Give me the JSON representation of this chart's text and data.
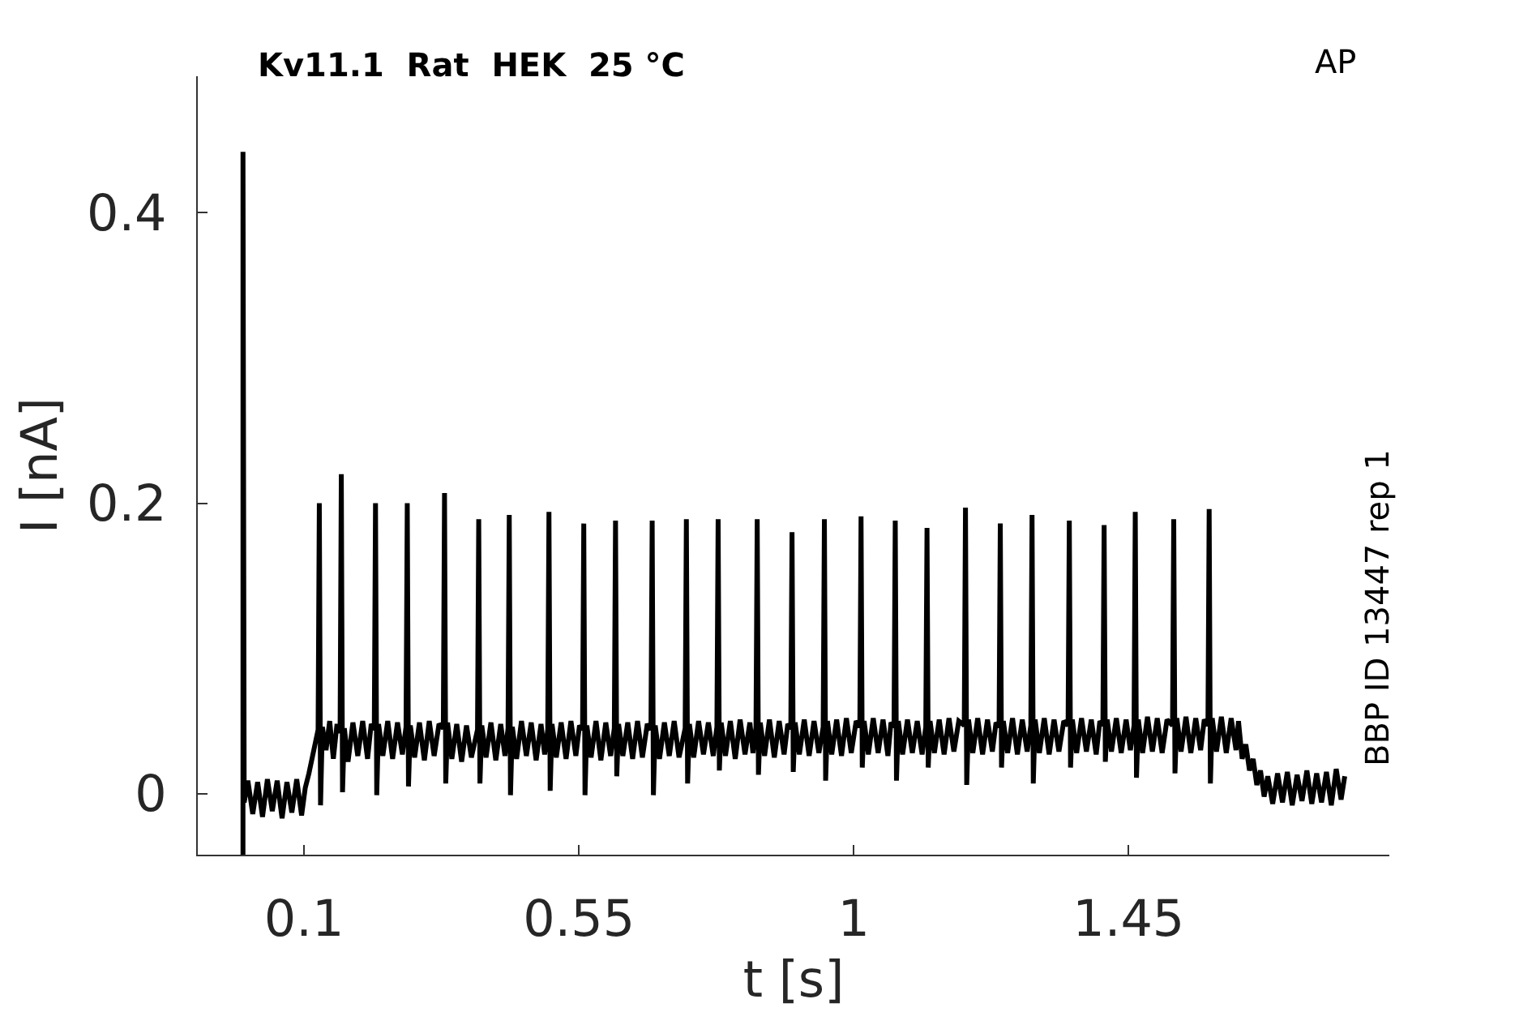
{
  "chart_data": {
    "type": "line",
    "title": "Kv11.1  Rat  HEK  25 °C",
    "xlabel": "t [s]",
    "ylabel": "I [nA]",
    "annotations": [
      "AP",
      "BBP ID 13447 rep 1"
    ],
    "x": [
      0,
      0,
      0.002,
      0.008,
      0.016,
      0.024,
      0.032,
      0.04,
      0.048,
      0.056,
      0.064,
      0.072,
      0.08,
      0.088,
      0.096,
      0.102,
      0.108,
      0.114,
      0.12,
      0.123,
      0.125,
      0.127,
      0.13,
      0.136,
      0.142,
      0.148,
      0.154,
      0.159,
      0.161,
      0.163,
      0.166,
      0.172,
      0.18,
      0.188,
      0.196,
      0.204,
      0.21,
      0.215,
      0.217,
      0.219,
      0.222,
      0.229,
      0.237,
      0.245,
      0.253,
      0.261,
      0.267,
      0.269,
      0.271,
      0.274,
      0.281,
      0.289,
      0.297,
      0.305,
      0.313,
      0.321,
      0.328,
      0.33,
      0.332,
      0.335,
      0.342,
      0.35,
      0.358,
      0.366,
      0.374,
      0.384,
      0.386,
      0.388,
      0.391,
      0.398,
      0.406,
      0.414,
      0.422,
      0.429,
      0.434,
      0.436,
      0.438,
      0.441,
      0.448,
      0.456,
      0.464,
      0.472,
      0.48,
      0.488,
      0.494,
      0.499,
      0.501,
      0.503,
      0.506,
      0.513,
      0.521,
      0.529,
      0.537,
      0.545,
      0.551,
      0.556,
      0.558,
      0.56,
      0.563,
      0.57,
      0.578,
      0.586,
      0.594,
      0.602,
      0.608,
      0.61,
      0.612,
      0.615,
      0.622,
      0.63,
      0.638,
      0.646,
      0.654,
      0.662,
      0.668,
      0.67,
      0.672,
      0.675,
      0.682,
      0.69,
      0.698,
      0.706,
      0.714,
      0.724,
      0.726,
      0.728,
      0.731,
      0.738,
      0.746,
      0.754,
      0.762,
      0.77,
      0.776,
      0.778,
      0.78,
      0.783,
      0.79,
      0.798,
      0.806,
      0.814,
      0.822,
      0.83,
      0.835,
      0.84,
      0.842,
      0.844,
      0.847,
      0.854,
      0.862,
      0.87,
      0.878,
      0.886,
      0.892,
      0.897,
      0.899,
      0.901,
      0.904,
      0.911,
      0.919,
      0.927,
      0.935,
      0.943,
      0.95,
      0.952,
      0.954,
      0.957,
      0.964,
      0.972,
      0.98,
      0.988,
      0.996,
      1.004,
      1.01,
      1.012,
      1.014,
      1.017,
      1.024,
      1.032,
      1.04,
      1.048,
      1.056,
      1.061,
      1.066,
      1.068,
      1.07,
      1.073,
      1.08,
      1.088,
      1.096,
      1.104,
      1.112,
      1.118,
      1.12,
      1.122,
      1.125,
      1.132,
      1.14,
      1.148,
      1.156,
      1.164,
      1.172,
      1.181,
      1.183,
      1.185,
      1.188,
      1.195,
      1.203,
      1.211,
      1.219,
      1.227,
      1.233,
      1.238,
      1.24,
      1.242,
      1.245,
      1.252,
      1.26,
      1.268,
      1.276,
      1.284,
      1.29,
      1.292,
      1.294,
      1.297,
      1.304,
      1.312,
      1.32,
      1.328,
      1.336,
      1.344,
      1.351,
      1.353,
      1.355,
      1.358,
      1.365,
      1.373,
      1.381,
      1.389,
      1.397,
      1.403,
      1.408,
      1.41,
      1.412,
      1.415,
      1.422,
      1.43,
      1.438,
      1.446,
      1.453,
      1.459,
      1.461,
      1.463,
      1.466,
      1.473,
      1.481,
      1.489,
      1.497,
      1.505,
      1.513,
      1.522,
      1.524,
      1.526,
      1.529,
      1.536,
      1.544,
      1.552,
      1.56,
      1.568,
      1.574,
      1.58,
      1.582,
      1.584,
      1.587,
      1.594,
      1.602,
      1.61,
      1.618,
      1.626,
      1.63,
      1.636,
      1.642,
      1.648,
      1.654,
      1.66,
      1.666,
      1.672,
      1.678,
      1.686,
      1.694,
      1.702,
      1.71,
      1.718,
      1.726,
      1.734,
      1.742,
      1.75,
      1.758,
      1.766,
      1.774,
      1.782,
      1.79,
      1.798,
      1.804
    ],
    "series": [
      {
        "color": "#000000",
        "values": [
          -0.042,
          0.442,
          -0.006,
          0.009,
          -0.014,
          0.008,
          -0.016,
          0.01,
          -0.012,
          0.009,
          -0.017,
          0.008,
          -0.013,
          0.01,
          -0.015,
          0.004,
          0.014,
          0.026,
          0.038,
          0.044,
          0.2,
          -0.008,
          0.046,
          0.03,
          0.05,
          0.024,
          0.048,
          0.042,
          0.22,
          0.001,
          0.045,
          0.022,
          0.049,
          0.026,
          0.05,
          0.024,
          0.048,
          0.044,
          0.2,
          -0.001,
          0.048,
          0.026,
          0.05,
          0.024,
          0.049,
          0.027,
          0.046,
          0.2,
          0.005,
          0.047,
          0.025,
          0.049,
          0.023,
          0.05,
          0.026,
          0.048,
          0.045,
          0.207,
          0.007,
          0.049,
          0.024,
          0.048,
          0.022,
          0.047,
          0.025,
          0.044,
          0.189,
          0.007,
          0.047,
          0.025,
          0.049,
          0.023,
          0.048,
          0.026,
          0.045,
          0.192,
          -0.001,
          0.046,
          0.024,
          0.05,
          0.026,
          0.049,
          0.023,
          0.048,
          0.027,
          0.044,
          0.194,
          0.002,
          0.048,
          0.025,
          0.049,
          0.024,
          0.05,
          0.026,
          0.047,
          0.044,
          0.186,
          -0.001,
          0.047,
          0.025,
          0.05,
          0.023,
          0.049,
          0.026,
          0.045,
          0.188,
          0.012,
          0.048,
          0.026,
          0.049,
          0.024,
          0.05,
          0.025,
          0.048,
          0.044,
          0.188,
          -0.001,
          0.047,
          0.024,
          0.049,
          0.026,
          0.05,
          0.025,
          0.045,
          0.189,
          0.007,
          0.048,
          0.025,
          0.05,
          0.027,
          0.049,
          0.026,
          0.046,
          0.189,
          0.016,
          0.049,
          0.026,
          0.05,
          0.024,
          0.051,
          0.027,
          0.049,
          0.028,
          0.046,
          0.189,
          0.013,
          0.049,
          0.026,
          0.051,
          0.025,
          0.05,
          0.027,
          0.048,
          0.045,
          0.18,
          0.015,
          0.049,
          0.027,
          0.051,
          0.026,
          0.05,
          0.028,
          0.046,
          0.189,
          0.009,
          0.05,
          0.027,
          0.051,
          0.026,
          0.052,
          0.028,
          0.05,
          0.046,
          0.191,
          0.018,
          0.05,
          0.027,
          0.052,
          0.028,
          0.051,
          0.026,
          0.049,
          0.046,
          0.188,
          0.009,
          0.05,
          0.027,
          0.051,
          0.028,
          0.05,
          0.027,
          0.046,
          0.183,
          0.018,
          0.05,
          0.028,
          0.051,
          0.027,
          0.052,
          0.029,
          0.05,
          0.047,
          0.197,
          0.006,
          0.051,
          0.028,
          0.052,
          0.027,
          0.051,
          0.029,
          0.049,
          0.046,
          0.186,
          0.018,
          0.05,
          0.028,
          0.052,
          0.027,
          0.051,
          0.029,
          0.047,
          0.192,
          0.007,
          0.051,
          0.028,
          0.052,
          0.027,
          0.051,
          0.029,
          0.05,
          0.047,
          0.188,
          0.018,
          0.051,
          0.028,
          0.052,
          0.029,
          0.051,
          0.027,
          0.05,
          0.047,
          0.185,
          0.022,
          0.051,
          0.029,
          0.052,
          0.028,
          0.051,
          0.03,
          0.047,
          0.194,
          0.011,
          0.051,
          0.028,
          0.053,
          0.029,
          0.052,
          0.028,
          0.051,
          0.047,
          0.189,
          0.014,
          0.052,
          0.029,
          0.053,
          0.028,
          0.052,
          0.03,
          0.051,
          0.047,
          0.196,
          0.007,
          0.052,
          0.029,
          0.053,
          0.028,
          0.052,
          0.03,
          0.05,
          0.024,
          0.034,
          0.016,
          0.024,
          0.006,
          0.016,
          -0.002,
          0.012,
          -0.007,
          0.014,
          -0.006,
          0.015,
          -0.008,
          0.013,
          -0.005,
          0.016,
          -0.007,
          0.014,
          -0.006,
          0.015,
          -0.008,
          0.017,
          -0.004,
          0.012
        ]
      }
    ],
    "xlim": [
      -0.074,
      1.877
    ],
    "ylim": [
      -0.042,
      0.494
    ],
    "xticks": [
      0.1,
      0.55,
      1,
      1.45
    ],
    "yticks": [
      0,
      0.2,
      0.4
    ]
  }
}
